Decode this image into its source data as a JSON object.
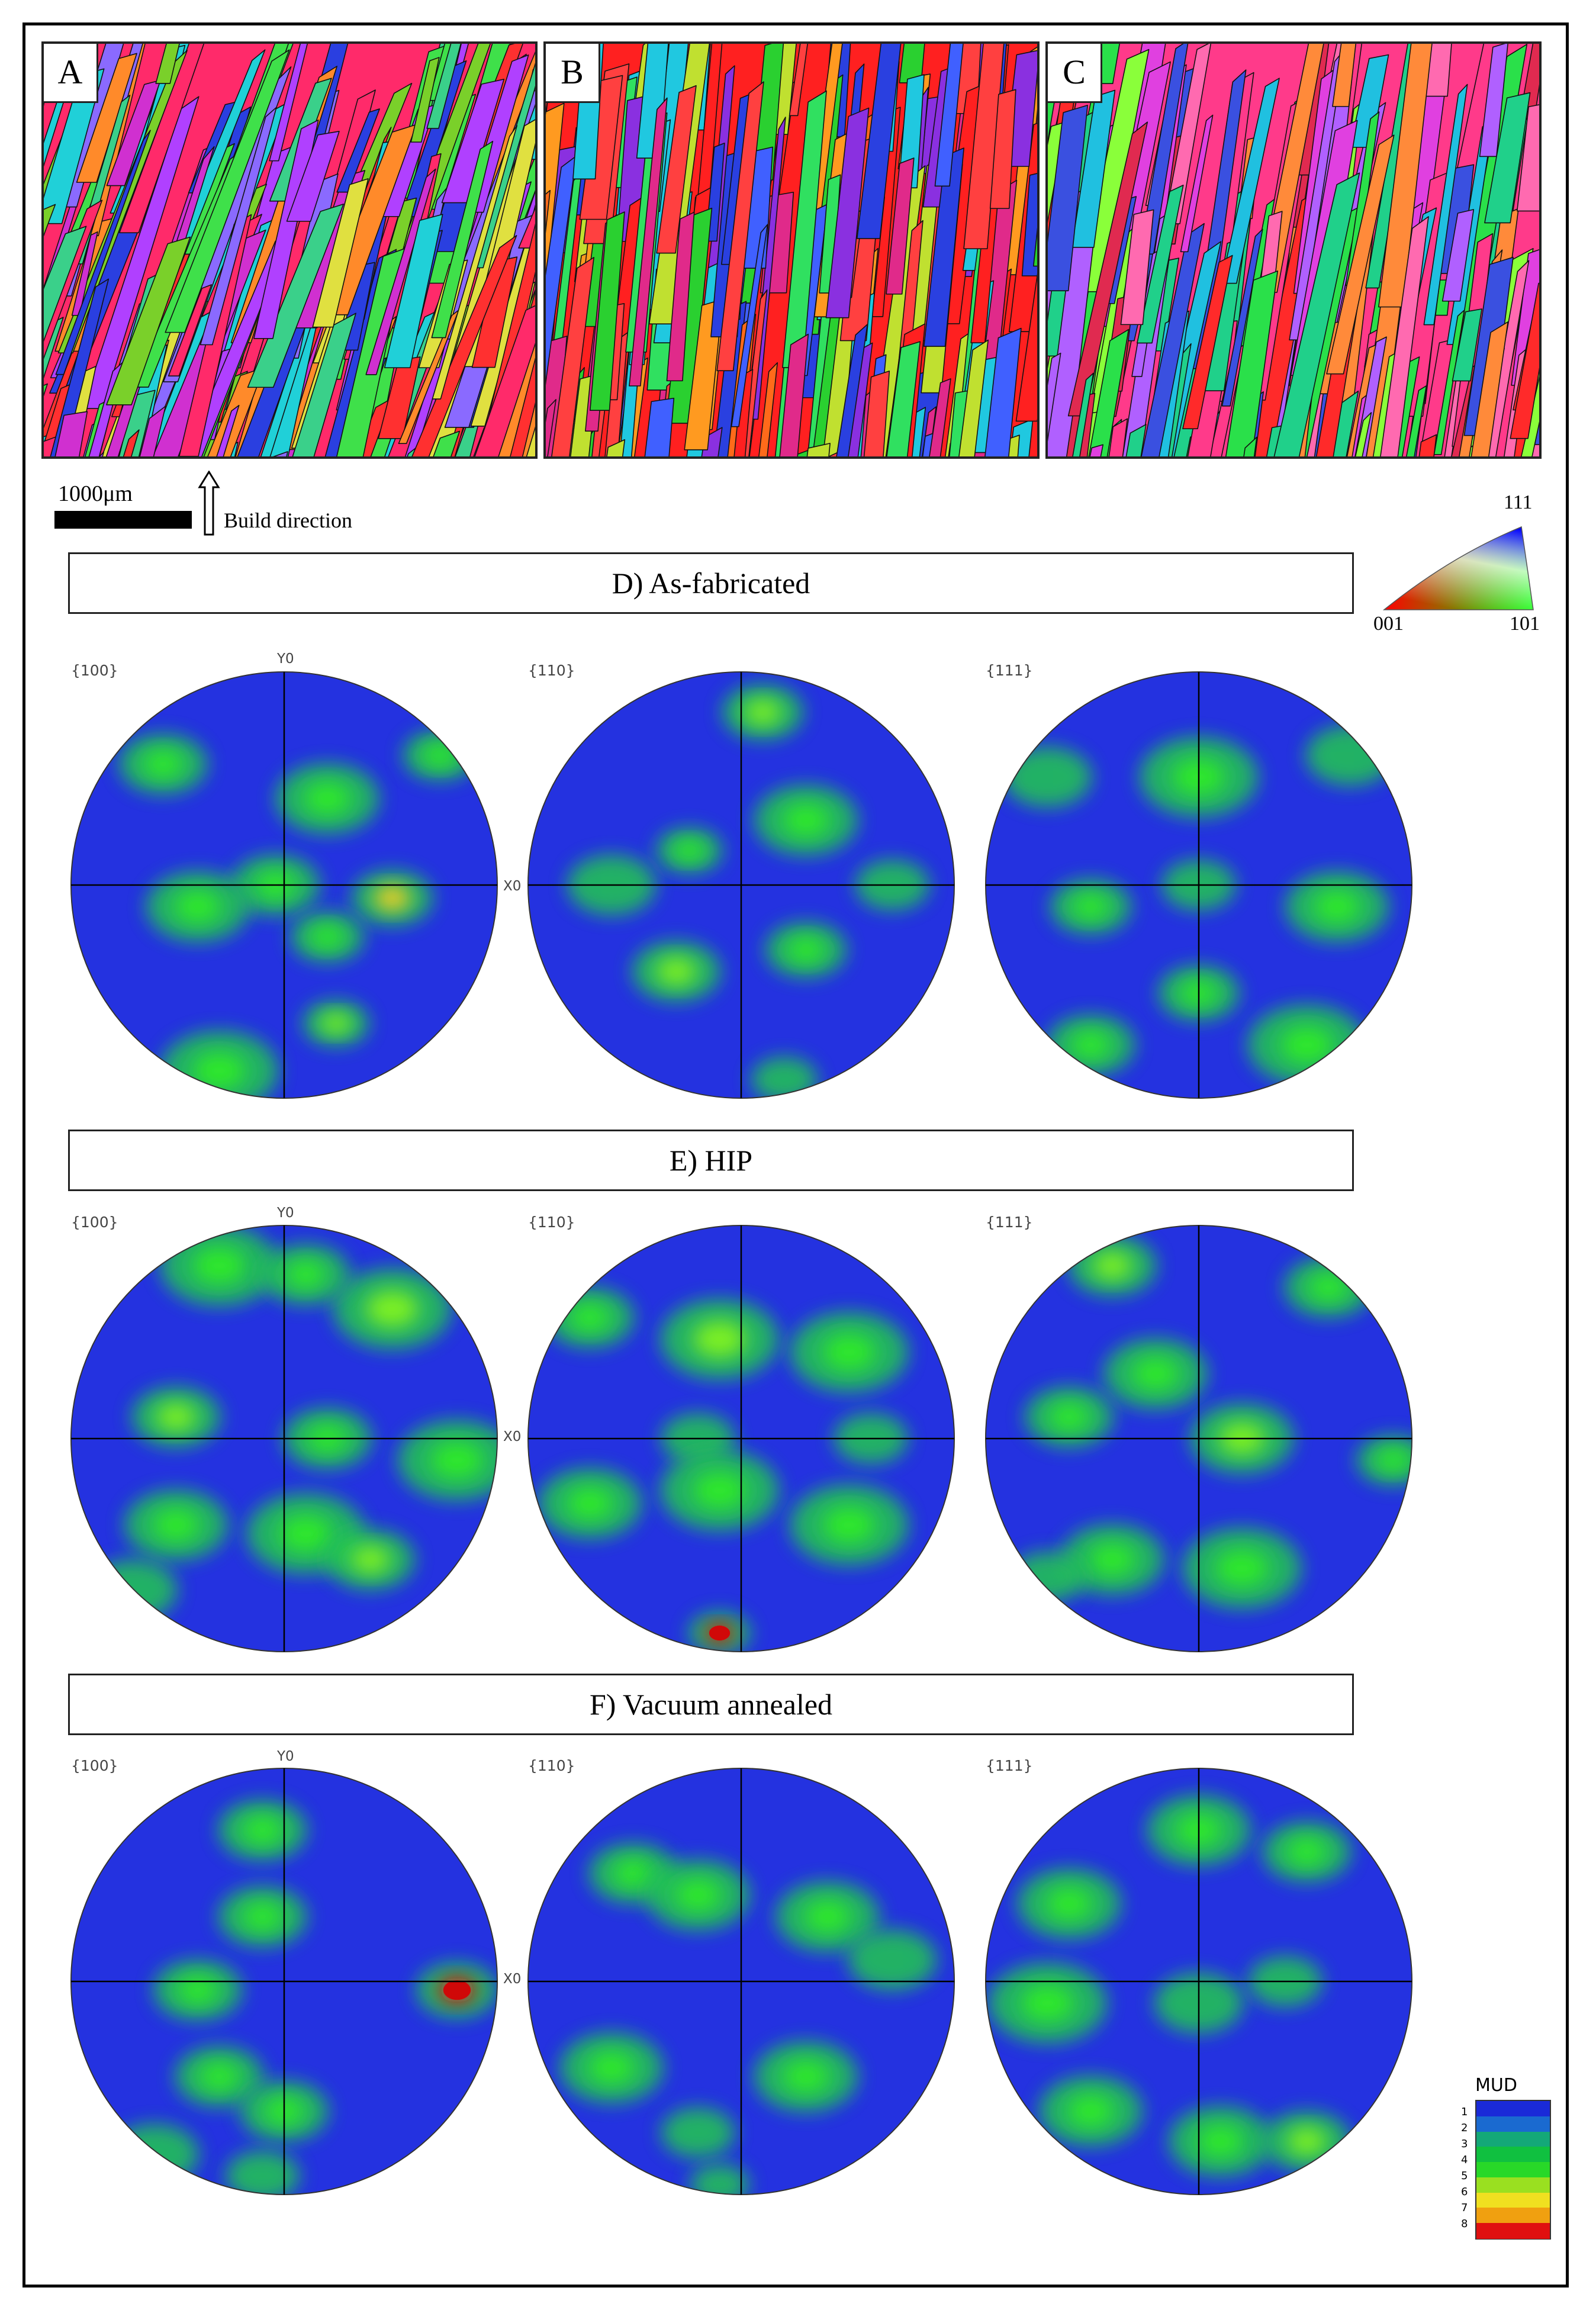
{
  "panels": [
    {
      "letter": "A",
      "palette": [
        "#ff2a6a",
        "#3fe04a",
        "#2a3fe0",
        "#d030d0",
        "#20d0d8",
        "#ff8a2a",
        "#b040ff",
        "#7ad02a",
        "#e0e040",
        "#ff3030",
        "#3ad08a",
        "#8a6aff"
      ]
    },
    {
      "letter": "B",
      "palette": [
        "#ff2020",
        "#ff6a1a",
        "#2ad030",
        "#2a40e0",
        "#ff9a20",
        "#20c8e0",
        "#e02a8a",
        "#8a30e0",
        "#30e060",
        "#ff4040",
        "#4060ff",
        "#c0e030"
      ]
    },
    {
      "letter": "C",
      "palette": [
        "#ff3a8a",
        "#ff2a2a",
        "#e040e0",
        "#2ae04a",
        "#20c0e0",
        "#ff8a3a",
        "#3a50e0",
        "#b060ff",
        "#ff6ab0",
        "#20d08a",
        "#8aff3a",
        "#e02a50"
      ]
    }
  ],
  "scale": {
    "label": "1000μm"
  },
  "build": {
    "label": "Build direction"
  },
  "ipf": {
    "label_111": "111",
    "label_001": "001",
    "label_101": "101"
  },
  "sections": [
    {
      "title": "D) As-fabricated"
    },
    {
      "title": "E) HIP"
    },
    {
      "title": "F) Vacuum annealed"
    }
  ],
  "pole_figures": {
    "labels": [
      "{100}",
      "{110}",
      "{111}"
    ],
    "y_axis_label": "Y0",
    "x_axis_label": "X0",
    "rows": [
      [
        [
          [
            0.22,
            0.22,
            60,
            3
          ],
          [
            0.86,
            0.2,
            50,
            3
          ],
          [
            0.6,
            0.3,
            70,
            3
          ],
          [
            0.48,
            0.5,
            60,
            3
          ],
          [
            0.75,
            0.53,
            55,
            5
          ],
          [
            0.3,
            0.55,
            70,
            3
          ],
          [
            0.62,
            0.82,
            45,
            4
          ],
          [
            0.35,
            0.93,
            80,
            3
          ],
          [
            0.6,
            0.62,
            50,
            3
          ]
        ],
        [
          [
            0.55,
            0.1,
            55,
            4
          ],
          [
            0.65,
            0.35,
            70,
            3
          ],
          [
            0.38,
            0.42,
            45,
            3
          ],
          [
            0.2,
            0.5,
            60,
            2
          ],
          [
            0.35,
            0.7,
            60,
            4
          ],
          [
            0.65,
            0.65,
            55,
            3
          ],
          [
            0.85,
            0.5,
            50,
            2
          ],
          [
            0.6,
            0.95,
            45,
            2
          ]
        ],
        [
          [
            0.5,
            0.25,
            80,
            3
          ],
          [
            0.85,
            0.2,
            60,
            2
          ],
          [
            0.15,
            0.25,
            60,
            2
          ],
          [
            0.25,
            0.55,
            55,
            3
          ],
          [
            0.82,
            0.55,
            70,
            3
          ],
          [
            0.5,
            0.75,
            55,
            3
          ],
          [
            0.25,
            0.87,
            60,
            3
          ],
          [
            0.75,
            0.87,
            80,
            3
          ],
          [
            0.5,
            0.5,
            50,
            2
          ]
        ]
      ],
      [
        [
          [
            0.35,
            0.1,
            80,
            3
          ],
          [
            0.75,
            0.2,
            80,
            4
          ],
          [
            0.55,
            0.12,
            60,
            3
          ],
          [
            0.25,
            0.45,
            60,
            4
          ],
          [
            0.6,
            0.5,
            60,
            3
          ],
          [
            0.9,
            0.55,
            80,
            3
          ],
          [
            0.25,
            0.7,
            70,
            3
          ],
          [
            0.55,
            0.72,
            80,
            3
          ],
          [
            0.7,
            0.78,
            60,
            4
          ],
          [
            0.15,
            0.85,
            60,
            2
          ]
        ],
        [
          [
            0.15,
            0.22,
            60,
            3
          ],
          [
            0.45,
            0.27,
            80,
            4
          ],
          [
            0.75,
            0.3,
            80,
            3
          ],
          [
            0.4,
            0.5,
            50,
            2
          ],
          [
            0.8,
            0.5,
            50,
            2
          ],
          [
            0.15,
            0.65,
            70,
            3
          ],
          [
            0.45,
            0.62,
            80,
            3
          ],
          [
            0.75,
            0.7,
            80,
            3
          ],
          [
            0.45,
            0.95,
            42,
            8
          ]
        ],
        [
          [
            0.3,
            0.1,
            60,
            4
          ],
          [
            0.8,
            0.15,
            60,
            3
          ],
          [
            0.4,
            0.35,
            70,
            3
          ],
          [
            0.2,
            0.45,
            60,
            3
          ],
          [
            0.6,
            0.5,
            70,
            4
          ],
          [
            0.95,
            0.55,
            50,
            3
          ],
          [
            0.3,
            0.78,
            70,
            3
          ],
          [
            0.6,
            0.8,
            80,
            3
          ],
          [
            0.15,
            0.82,
            50,
            2
          ]
        ]
      ],
      [
        [
          [
            0.45,
            0.15,
            60,
            3
          ],
          [
            0.45,
            0.35,
            60,
            3
          ],
          [
            0.3,
            0.52,
            60,
            3
          ],
          [
            0.9,
            0.52,
            55,
            8
          ],
          [
            0.35,
            0.72,
            60,
            3
          ],
          [
            0.5,
            0.8,
            60,
            3
          ],
          [
            0.2,
            0.9,
            60,
            2
          ],
          [
            0.45,
            0.95,
            50,
            2
          ]
        ],
        [
          [
            0.25,
            0.25,
            60,
            3
          ],
          [
            0.4,
            0.3,
            70,
            3
          ],
          [
            0.7,
            0.35,
            70,
            3
          ],
          [
            0.85,
            0.45,
            60,
            2
          ],
          [
            0.2,
            0.7,
            70,
            3
          ],
          [
            0.65,
            0.72,
            70,
            3
          ],
          [
            0.4,
            0.85,
            50,
            2
          ],
          [
            0.45,
            0.97,
            40,
            2
          ]
        ],
        [
          [
            0.5,
            0.15,
            70,
            3
          ],
          [
            0.75,
            0.2,
            60,
            3
          ],
          [
            0.2,
            0.32,
            70,
            3
          ],
          [
            0.15,
            0.55,
            80,
            3
          ],
          [
            0.5,
            0.55,
            60,
            2
          ],
          [
            0.25,
            0.8,
            70,
            3
          ],
          [
            0.55,
            0.87,
            70,
            3
          ],
          [
            0.75,
            0.87,
            60,
            4
          ],
          [
            0.7,
            0.5,
            50,
            2
          ]
        ]
      ]
    ]
  },
  "mud": {
    "title": "MUD",
    "ticks": [
      "1",
      "2",
      "3",
      "4",
      "5",
      "6",
      "7",
      "8"
    ]
  },
  "colors": {
    "pf_background": "#2432e0",
    "mud_low": "#1a2ad8",
    "mud_high": "#e01010"
  }
}
